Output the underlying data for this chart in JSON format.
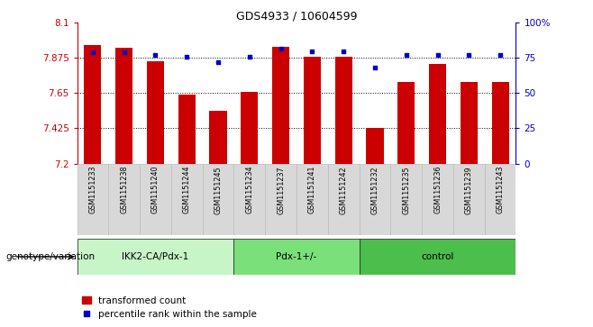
{
  "title": "GDS4933 / 10604599",
  "samples": [
    "GSM1151233",
    "GSM1151238",
    "GSM1151240",
    "GSM1151244",
    "GSM1151245",
    "GSM1151234",
    "GSM1151237",
    "GSM1151241",
    "GSM1151242",
    "GSM1151232",
    "GSM1151235",
    "GSM1151236",
    "GSM1151239",
    "GSM1151243"
  ],
  "groups": [
    {
      "label": "IKK2-CA/Pdx-1",
      "count": 5,
      "color": "#c8f5c8"
    },
    {
      "label": "Pdx-1+/-",
      "count": 4,
      "color": "#7ae07a"
    },
    {
      "label": "control",
      "count": 5,
      "color": "#4cbe4c"
    }
  ],
  "bar_values": [
    7.96,
    7.94,
    7.855,
    7.64,
    7.535,
    7.66,
    7.945,
    7.885,
    7.885,
    7.43,
    7.72,
    7.84,
    7.72,
    7.72
  ],
  "percentile_values": [
    79,
    79,
    77,
    76,
    72,
    76,
    82,
    80,
    80,
    68,
    77,
    77,
    77,
    77
  ],
  "ymin": 7.2,
  "ymax": 8.1,
  "yticks": [
    7.2,
    7.425,
    7.65,
    7.875,
    8.1
  ],
  "ytick_labels": [
    "7.2",
    "7.425",
    "7.65",
    "7.875",
    "8.1"
  ],
  "y2min": 0,
  "y2max": 100,
  "y2ticks": [
    0,
    25,
    50,
    75,
    100
  ],
  "y2tick_labels": [
    "0",
    "25",
    "50",
    "75",
    "100%"
  ],
  "bar_color": "#cc0000",
  "dot_color": "#0000cc",
  "legend_bar_label": "transformed count",
  "legend_dot_label": "percentile rank within the sample",
  "xlabel_group": "genotype/variation",
  "sample_bg": "#d8d8d8",
  "plot_bg": "#ffffff"
}
